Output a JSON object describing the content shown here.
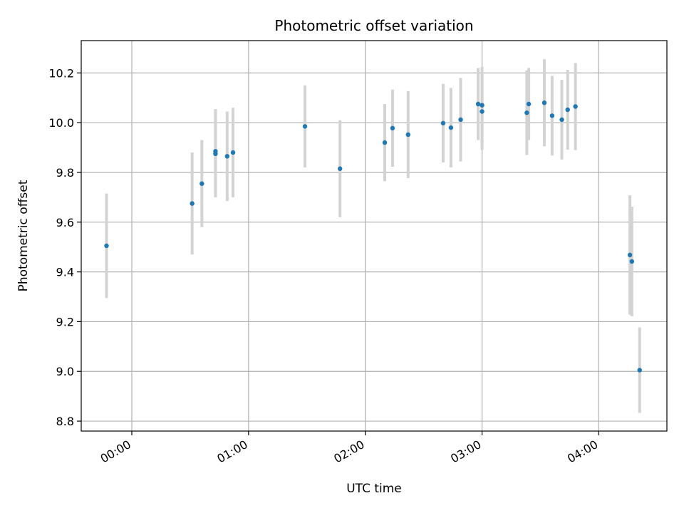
{
  "chart_data": {
    "type": "scatter",
    "title": "Photometric offset variation",
    "xlabel": "UTC time",
    "ylabel": "Photometric offset",
    "x_ticks": [
      "00:00",
      "01:00",
      "02:00",
      "03:00",
      "04:00"
    ],
    "y_ticks": [
      "8.8",
      "9.0",
      "9.2",
      "9.4",
      "9.6",
      "9.8",
      "10.0",
      "10.2"
    ],
    "xlim": [
      "-00:26",
      "04:35"
    ],
    "ylim": [
      8.76,
      10.33
    ],
    "grid": true,
    "colors": {
      "points": "#1f77b4",
      "errorbars": "#d3d3d3",
      "grid": "#b0b0b0"
    },
    "points": [
      {
        "t": "-00:13",
        "y": 9.505,
        "err": 0.21
      },
      {
        "t": "00:31",
        "y": 9.675,
        "err": 0.205
      },
      {
        "t": "00:36",
        "y": 9.755,
        "err": 0.175
      },
      {
        "t": "00:43",
        "y": 9.885,
        "err": 0.17
      },
      {
        "t": "00:43",
        "y": 9.875,
        "err": 0.175
      },
      {
        "t": "00:49",
        "y": 9.865,
        "err": 0.18
      },
      {
        "t": "00:52",
        "y": 9.88,
        "err": 0.18
      },
      {
        "t": "01:29",
        "y": 9.985,
        "err": 0.165
      },
      {
        "t": "01:47",
        "y": 9.815,
        "err": 0.195
      },
      {
        "t": "02:10",
        "y": 9.92,
        "err": 0.155
      },
      {
        "t": "02:14",
        "y": 9.978,
        "err": 0.155
      },
      {
        "t": "02:22",
        "y": 9.952,
        "err": 0.175
      },
      {
        "t": "02:40",
        "y": 9.998,
        "err": 0.158
      },
      {
        "t": "02:44",
        "y": 9.98,
        "err": 0.16
      },
      {
        "t": "02:49",
        "y": 10.012,
        "err": 0.168
      },
      {
        "t": "02:58",
        "y": 10.075,
        "err": 0.145
      },
      {
        "t": "03:00",
        "y": 10.07,
        "err": 0.155
      },
      {
        "t": "03:00",
        "y": 10.045,
        "err": 0.155
      },
      {
        "t": "03:23",
        "y": 10.04,
        "err": 0.17
      },
      {
        "t": "03:24",
        "y": 10.075,
        "err": 0.145
      },
      {
        "t": "03:32",
        "y": 10.08,
        "err": 0.175
      },
      {
        "t": "03:36",
        "y": 10.028,
        "err": 0.16
      },
      {
        "t": "03:41",
        "y": 10.012,
        "err": 0.16
      },
      {
        "t": "03:44",
        "y": 10.052,
        "err": 0.16
      },
      {
        "t": "03:48",
        "y": 10.065,
        "err": 0.175
      },
      {
        "t": "04:16",
        "y": 9.468,
        "err": 0.24
      },
      {
        "t": "04:17",
        "y": 9.442,
        "err": 0.22
      },
      {
        "t": "04:21",
        "y": 9.005,
        "err": 0.172
      }
    ]
  }
}
